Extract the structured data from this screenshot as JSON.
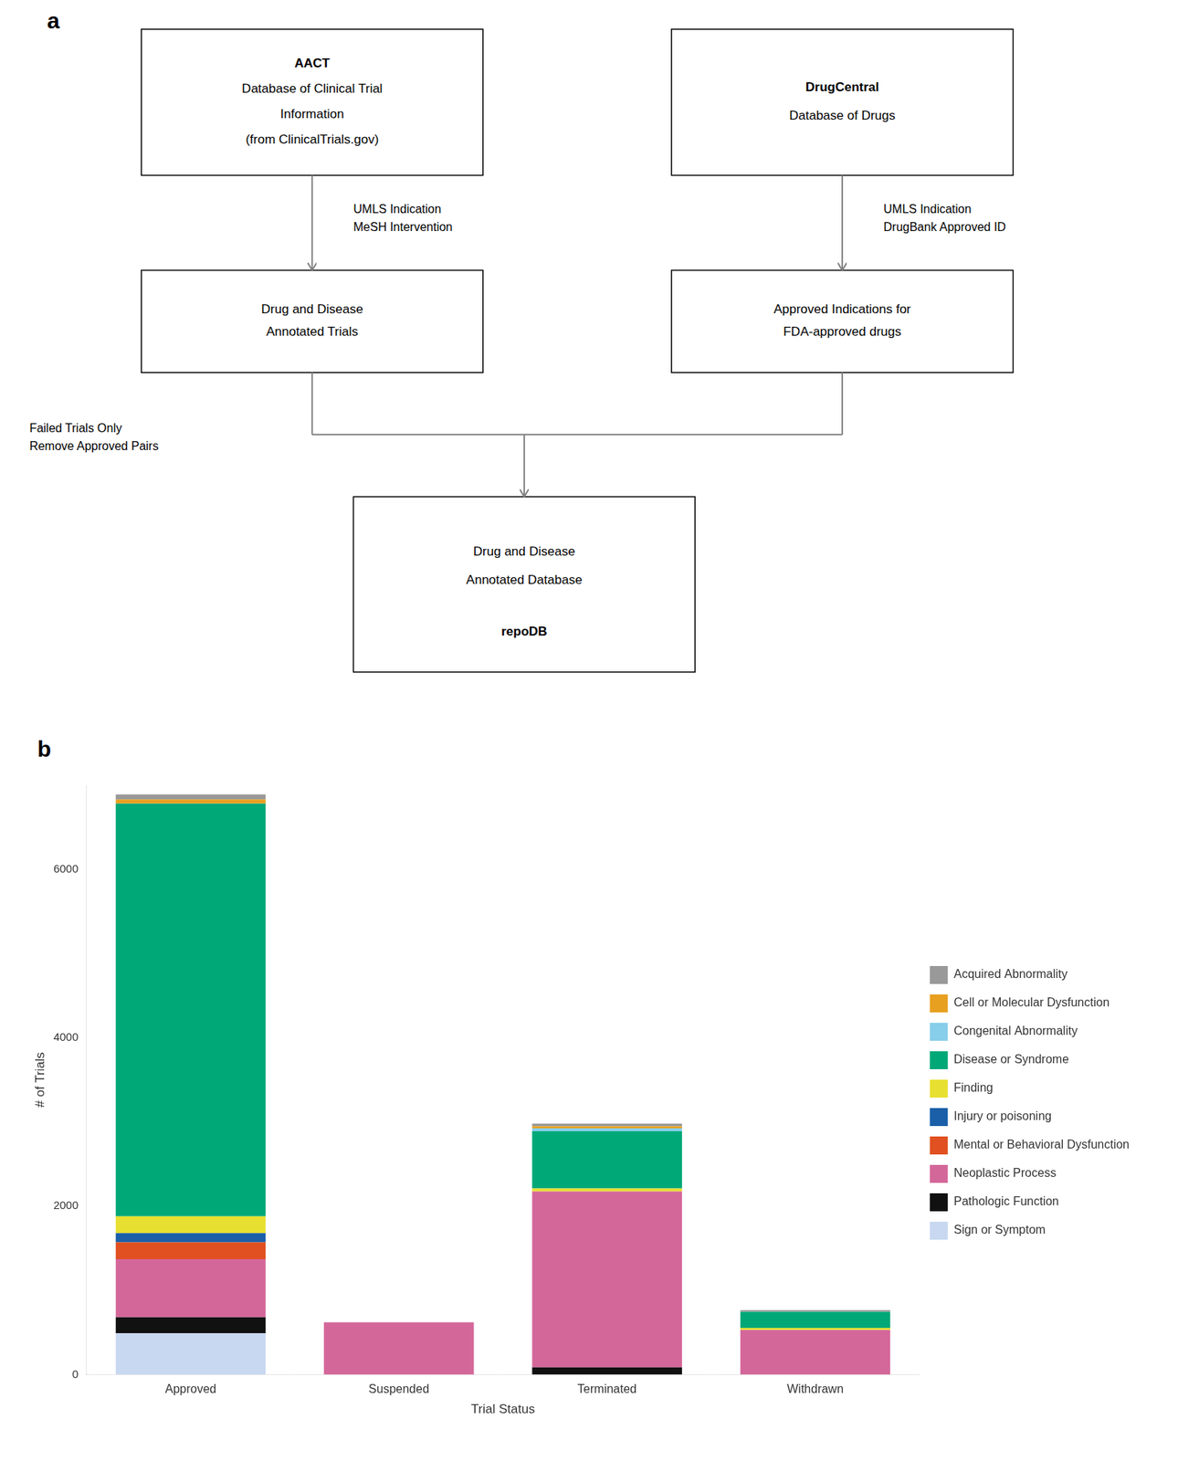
{
  "chart_data": {
    "type": "bar",
    "annotations": [
      "a",
      "AACT\nDatabase of Clinical Trial\nInformation\n(from ClinicalTrials.gov)",
      "DrugCentral\nDatabase of Drugs",
      "Drug and Disease\nAnnotated Trials",
      "Approved Indications for\nFDA-approved drugs",
      "Drug and Disease\nAnnotated Database",
      "repoDB",
      "UMLS Indication\nMeSH Intervention",
      "UMLS Indication\nDrugBank Approved ID",
      "Failed Trials Only\nRemove Approved Pairs",
      "b"
    ],
    "categories": [
      "Approved",
      "Suspended",
      "Terminated",
      "Withdrawn"
    ],
    "series": [
      {
        "name": "Sign or Symptom",
        "color": "#c8d8f0",
        "values": [
          490,
          0,
          0,
          0
        ]
      },
      {
        "name": "Pathologic Function",
        "color": "#111111",
        "values": [
          190,
          0,
          85,
          0
        ]
      },
      {
        "name": "Neoplastic Process",
        "color": "#d4679a",
        "values": [
          690,
          620,
          2090,
          530
        ]
      },
      {
        "name": "Mental or Behavioral Dysfunction",
        "color": "#e05020",
        "values": [
          200,
          0,
          0,
          0
        ]
      },
      {
        "name": "Injury or poisoning",
        "color": "#1a5fa8",
        "values": [
          110,
          0,
          0,
          0
        ]
      },
      {
        "name": "Finding",
        "color": "#e8e030",
        "values": [
          200,
          0,
          35,
          25
        ]
      },
      {
        "name": "Disease or Syndrome",
        "color": "#00a878",
        "values": [
          4900,
          0,
          680,
          190
        ]
      },
      {
        "name": "Congenital Abnormality",
        "color": "#87ceeb",
        "values": [
          0,
          0,
          35,
          0
        ]
      },
      {
        "name": "Cell or Molecular Dysfunction",
        "color": "#e8a020",
        "values": [
          50,
          0,
          25,
          0
        ]
      },
      {
        "name": "Acquired Abnormality",
        "color": "#999999",
        "values": [
          60,
          0,
          30,
          20
        ]
      }
    ],
    "ylabel": "# of Trials",
    "xlabel": "Trial Status",
    "ylim": [
      0,
      7000
    ],
    "yticks": [
      0,
      2000,
      4000,
      6000
    ],
    "stacked": true,
    "grid": false,
    "legend": "right"
  }
}
